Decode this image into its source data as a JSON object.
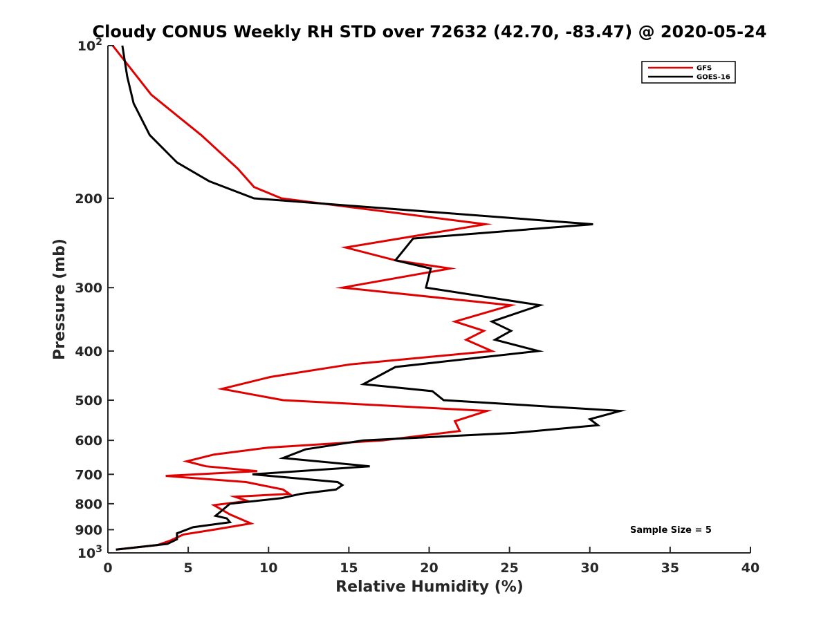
{
  "chart_data": {
    "type": "line",
    "title": "Cloudy CONUS Weekly RH STD over 72632 (42.70, -83.47) @ 2020-05-24",
    "xlabel": "Relative Humidity (%)",
    "ylabel": "Pressure (mb)",
    "xlim": [
      0,
      40
    ],
    "ylim": [
      100,
      1000
    ],
    "y_scale": "log",
    "y_reversed": true,
    "x_ticks": [
      "0",
      "5",
      "10",
      "15",
      "20",
      "25",
      "30",
      "35",
      "40"
    ],
    "y_ticks": [
      {
        "value": 100,
        "base": "10",
        "exp": "2"
      },
      {
        "value": 200,
        "label": "200"
      },
      {
        "value": 300,
        "label": "300"
      },
      {
        "value": 400,
        "label": "400"
      },
      {
        "value": 500,
        "label": "500"
      },
      {
        "value": 600,
        "label": "600"
      },
      {
        "value": 700,
        "label": "700"
      },
      {
        "value": 800,
        "label": "800"
      },
      {
        "value": 900,
        "label": "900"
      },
      {
        "value": 1000,
        "base": "10",
        "exp": "3"
      }
    ],
    "grid": false,
    "legend_position": "top-right",
    "annotation": "Sample Size = 5",
    "series": [
      {
        "name": "GFS",
        "color": "#e00000",
        "points": [
          [
            0.3,
            100
          ],
          [
            2.7,
            125
          ],
          [
            5.8,
            150
          ],
          [
            8.1,
            175
          ],
          [
            9.1,
            190
          ],
          [
            10.8,
            200
          ],
          [
            23.5,
            225
          ],
          [
            14.8,
            250
          ],
          [
            17.9,
            265
          ],
          [
            21.3,
            275
          ],
          [
            14.6,
            300
          ],
          [
            25.1,
            325
          ],
          [
            21.6,
            350
          ],
          [
            23.4,
            365
          ],
          [
            22.3,
            380
          ],
          [
            23.9,
            400
          ],
          [
            15.1,
            425
          ],
          [
            10.1,
            450
          ],
          [
            7.1,
            475
          ],
          [
            10.9,
            500
          ],
          [
            23.6,
            525
          ],
          [
            21.6,
            550
          ],
          [
            21.9,
            575
          ],
          [
            17.1,
            600
          ],
          [
            10.0,
            620
          ],
          [
            6.6,
            640
          ],
          [
            4.9,
            660
          ],
          [
            6.1,
            675
          ],
          [
            9.3,
            690
          ],
          [
            3.6,
            705
          ],
          [
            8.6,
            725
          ],
          [
            10.9,
            750
          ],
          [
            11.3,
            765
          ],
          [
            7.9,
            775
          ],
          [
            8.7,
            790
          ],
          [
            6.6,
            805
          ],
          [
            7.6,
            840
          ],
          [
            8.9,
            875
          ],
          [
            6.6,
            900
          ],
          [
            4.7,
            920
          ],
          [
            3.9,
            945
          ],
          [
            3.1,
            965
          ],
          [
            0.5,
            985
          ]
        ]
      },
      {
        "name": "GOES-16",
        "color": "#000000",
        "points": [
          [
            0.9,
            100
          ],
          [
            1.2,
            115
          ],
          [
            1.6,
            130
          ],
          [
            2.6,
            150
          ],
          [
            4.3,
            170
          ],
          [
            6.3,
            185
          ],
          [
            9.1,
            200
          ],
          [
            30.2,
            225
          ],
          [
            19.0,
            240
          ],
          [
            17.9,
            265
          ],
          [
            20.1,
            275
          ],
          [
            19.8,
            300
          ],
          [
            26.9,
            325
          ],
          [
            23.9,
            350
          ],
          [
            25.1,
            365
          ],
          [
            24.1,
            380
          ],
          [
            26.8,
            400
          ],
          [
            17.9,
            430
          ],
          [
            15.9,
            465
          ],
          [
            20.2,
            480
          ],
          [
            20.9,
            500
          ],
          [
            31.9,
            525
          ],
          [
            30.0,
            545
          ],
          [
            30.5,
            560
          ],
          [
            25.3,
            580
          ],
          [
            15.9,
            600
          ],
          [
            12.3,
            625
          ],
          [
            10.9,
            650
          ],
          [
            16.3,
            675
          ],
          [
            9.0,
            700
          ],
          [
            14.3,
            725
          ],
          [
            14.6,
            735
          ],
          [
            14.2,
            750
          ],
          [
            12.0,
            765
          ],
          [
            10.8,
            780
          ],
          [
            7.6,
            800
          ],
          [
            7.0,
            830
          ],
          [
            6.7,
            845
          ],
          [
            7.4,
            855
          ],
          [
            7.6,
            870
          ],
          [
            5.3,
            890
          ],
          [
            4.3,
            915
          ],
          [
            4.3,
            940
          ],
          [
            3.7,
            960
          ],
          [
            0.5,
            985
          ]
        ]
      }
    ]
  }
}
